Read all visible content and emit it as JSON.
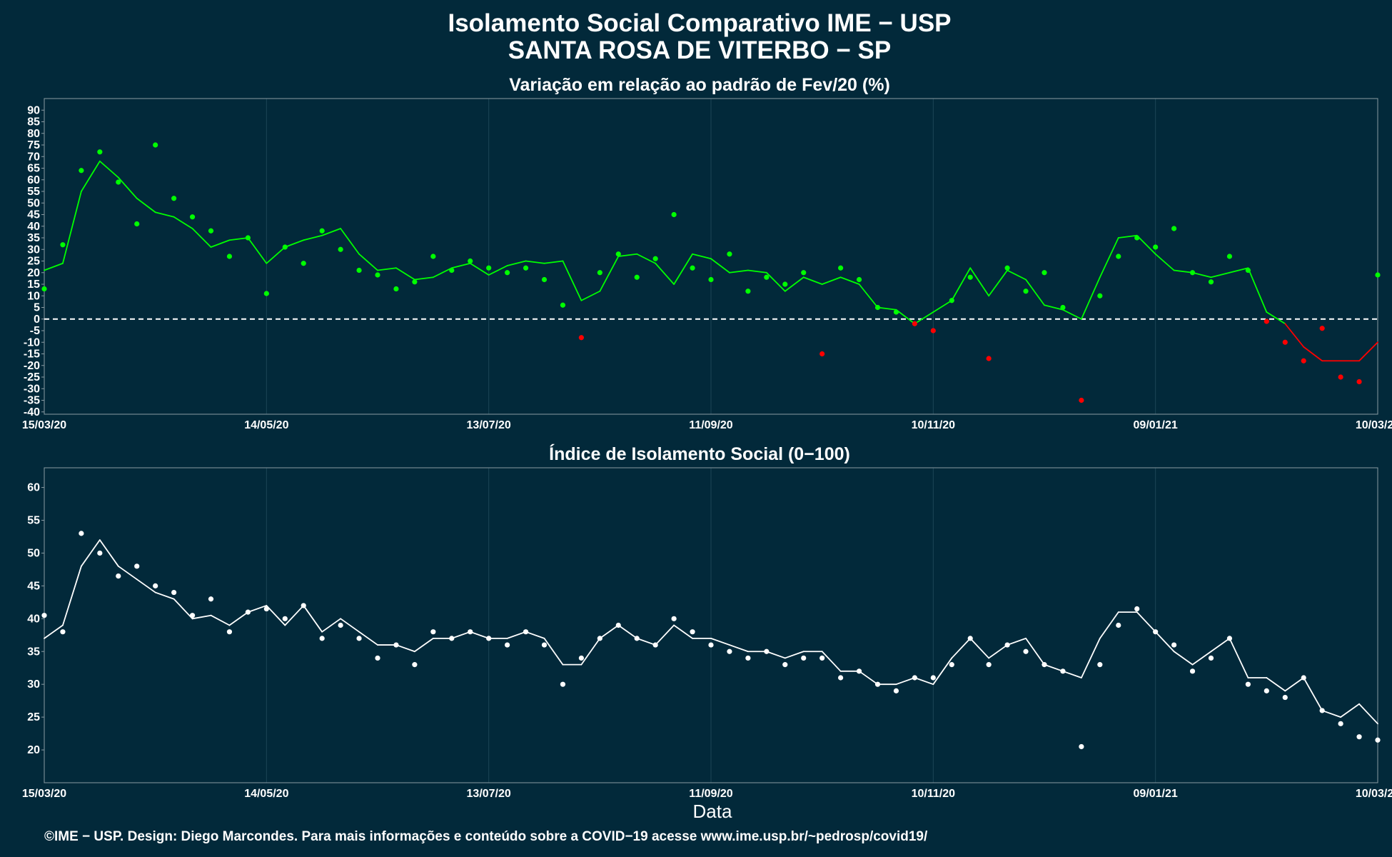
{
  "header": {
    "title_line1": "Isolamento Social Comparativo IME − USP",
    "title_line2": "SANTA ROSA DE VITERBO − SP"
  },
  "footer": {
    "credit": "©IME − USP. Design: Diego Marcondes. Para mais informações e conteúdo sobre a COVID−19 acesse www.ime.usp.br/~pedrosp/covid19/"
  },
  "colors": {
    "background": "#02293a",
    "positive": "#00ff00",
    "negative": "#ff0000",
    "index_series": "#ffffff",
    "axis_frame": "#8a9ba3",
    "grid": "#1c4556"
  },
  "chart_data": [
    {
      "type": "scatter",
      "title": "Variação em relação ao padrão de Fev/20 (%)",
      "xlabel": "",
      "ylabel": "",
      "x_axis": "date",
      "xlim": [
        "2020-03-15",
        "2021-03-10"
      ],
      "ylim": [
        -41,
        95
      ],
      "x_ticks": [
        "15/03/20",
        "14/05/20",
        "13/07/20",
        "11/09/20",
        "10/11/20",
        "09/01/21",
        "10/03/21"
      ],
      "y_ticks": [
        90,
        85,
        80,
        75,
        70,
        65,
        60,
        55,
        50,
        45,
        40,
        35,
        30,
        25,
        20,
        15,
        10,
        5,
        0,
        -5,
        -10,
        -15,
        -20,
        -25,
        -30,
        -35,
        -40
      ],
      "reference_line": 0,
      "point_color_rule": "green when ≥ 0, red when < 0",
      "series": [
        {
          "name": "daily",
          "style": "points",
          "x": [
            "2020-03-15",
            "2020-03-20",
            "2020-03-25",
            "2020-03-30",
            "2020-04-04",
            "2020-04-09",
            "2020-04-14",
            "2020-04-19",
            "2020-04-24",
            "2020-04-29",
            "2020-05-04",
            "2020-05-09",
            "2020-05-14",
            "2020-05-19",
            "2020-05-24",
            "2020-05-29",
            "2020-06-03",
            "2020-06-08",
            "2020-06-13",
            "2020-06-18",
            "2020-06-23",
            "2020-06-28",
            "2020-07-03",
            "2020-07-08",
            "2020-07-13",
            "2020-07-18",
            "2020-07-23",
            "2020-07-28",
            "2020-08-02",
            "2020-08-07",
            "2020-08-12",
            "2020-08-17",
            "2020-08-22",
            "2020-08-27",
            "2020-09-01",
            "2020-09-06",
            "2020-09-11",
            "2020-09-16",
            "2020-09-21",
            "2020-09-26",
            "2020-10-01",
            "2020-10-06",
            "2020-10-11",
            "2020-10-16",
            "2020-10-21",
            "2020-10-26",
            "2020-10-31",
            "2020-11-05",
            "2020-11-10",
            "2020-11-15",
            "2020-11-20",
            "2020-11-25",
            "2020-11-30",
            "2020-12-05",
            "2020-12-10",
            "2020-12-15",
            "2020-12-20",
            "2020-12-25",
            "2020-12-30",
            "2021-01-04",
            "2021-01-09",
            "2021-01-14",
            "2021-01-19",
            "2021-01-24",
            "2021-01-29",
            "2021-02-03",
            "2021-02-08",
            "2021-02-13",
            "2021-02-18",
            "2021-02-23",
            "2021-02-28",
            "2021-03-05",
            "2021-03-10"
          ],
          "y": [
            13,
            32,
            64,
            72,
            59,
            41,
            75,
            52,
            44,
            38,
            27,
            35,
            11,
            31,
            24,
            38,
            30,
            21,
            19,
            13,
            16,
            27,
            21,
            25,
            22,
            20,
            22,
            17,
            6,
            -8,
            20,
            28,
            18,
            26,
            45,
            22,
            17,
            28,
            12,
            18,
            15,
            20,
            -15,
            22,
            17,
            5,
            3,
            -2,
            -5,
            8,
            18,
            -17,
            22,
            12,
            20,
            5,
            -35,
            10,
            27,
            35,
            31,
            39,
            20,
            16,
            27,
            21,
            -1,
            -10,
            -18,
            -4,
            -25,
            -27,
            19
          ]
        },
        {
          "name": "7-day moving average",
          "style": "line",
          "x": [
            "2020-03-15",
            "2020-03-20",
            "2020-03-25",
            "2020-03-30",
            "2020-04-04",
            "2020-04-09",
            "2020-04-14",
            "2020-04-19",
            "2020-04-24",
            "2020-04-29",
            "2020-05-04",
            "2020-05-09",
            "2020-05-14",
            "2020-05-19",
            "2020-05-24",
            "2020-05-29",
            "2020-06-03",
            "2020-06-08",
            "2020-06-13",
            "2020-06-18",
            "2020-06-23",
            "2020-06-28",
            "2020-07-03",
            "2020-07-08",
            "2020-07-13",
            "2020-07-18",
            "2020-07-23",
            "2020-07-28",
            "2020-08-02",
            "2020-08-07",
            "2020-08-12",
            "2020-08-17",
            "2020-08-22",
            "2020-08-27",
            "2020-09-01",
            "2020-09-06",
            "2020-09-11",
            "2020-09-16",
            "2020-09-21",
            "2020-09-26",
            "2020-10-01",
            "2020-10-06",
            "2020-10-11",
            "2020-10-16",
            "2020-10-21",
            "2020-10-26",
            "2020-10-31",
            "2020-11-05",
            "2020-11-10",
            "2020-11-15",
            "2020-11-20",
            "2020-11-25",
            "2020-11-30",
            "2020-12-05",
            "2020-12-10",
            "2020-12-15",
            "2020-12-20",
            "2020-12-25",
            "2020-12-30",
            "2021-01-04",
            "2021-01-09",
            "2021-01-14",
            "2021-01-19",
            "2021-01-24",
            "2021-01-29",
            "2021-02-03",
            "2021-02-08",
            "2021-02-13",
            "2021-02-18",
            "2021-02-23",
            "2021-02-28",
            "2021-03-05",
            "2021-03-10"
          ],
          "y": [
            21,
            24,
            55,
            68,
            61,
            52,
            46,
            44,
            39,
            31,
            34,
            35,
            24,
            31,
            34,
            36,
            39,
            28,
            21,
            22,
            17,
            18,
            22,
            24,
            19,
            23,
            25,
            24,
            25,
            8,
            12,
            27,
            28,
            24,
            15,
            28,
            26,
            20,
            21,
            20,
            12,
            18,
            15,
            18,
            15,
            5,
            4,
            -2,
            3,
            8,
            22,
            10,
            21,
            17,
            6,
            4,
            0,
            18,
            35,
            36,
            28,
            21,
            20,
            18,
            20,
            22,
            3,
            -2,
            -12,
            -18,
            -18,
            -18,
            -10
          ]
        }
      ]
    },
    {
      "type": "scatter",
      "title": "Índice de Isolamento Social (0−100)",
      "xlabel": "Data",
      "ylabel": "",
      "x_axis": "date",
      "xlim": [
        "2020-03-15",
        "2021-03-10"
      ],
      "ylim": [
        15,
        63
      ],
      "x_ticks": [
        "15/03/20",
        "14/05/20",
        "13/07/20",
        "11/09/20",
        "10/11/20",
        "09/01/21",
        "10/03/21"
      ],
      "y_ticks": [
        60,
        55,
        50,
        45,
        40,
        35,
        30,
        25,
        20
      ],
      "series": [
        {
          "name": "daily",
          "style": "points",
          "x": [
            "2020-03-15",
            "2020-03-20",
            "2020-03-25",
            "2020-03-30",
            "2020-04-04",
            "2020-04-09",
            "2020-04-14",
            "2020-04-19",
            "2020-04-24",
            "2020-04-29",
            "2020-05-04",
            "2020-05-09",
            "2020-05-14",
            "2020-05-19",
            "2020-05-24",
            "2020-05-29",
            "2020-06-03",
            "2020-06-08",
            "2020-06-13",
            "2020-06-18",
            "2020-06-23",
            "2020-06-28",
            "2020-07-03",
            "2020-07-08",
            "2020-07-13",
            "2020-07-18",
            "2020-07-23",
            "2020-07-28",
            "2020-08-02",
            "2020-08-07",
            "2020-08-12",
            "2020-08-17",
            "2020-08-22",
            "2020-08-27",
            "2020-09-01",
            "2020-09-06",
            "2020-09-11",
            "2020-09-16",
            "2020-09-21",
            "2020-09-26",
            "2020-10-01",
            "2020-10-06",
            "2020-10-11",
            "2020-10-16",
            "2020-10-21",
            "2020-10-26",
            "2020-10-31",
            "2020-11-05",
            "2020-11-10",
            "2020-11-15",
            "2020-11-20",
            "2020-11-25",
            "2020-11-30",
            "2020-12-05",
            "2020-12-10",
            "2020-12-15",
            "2020-12-20",
            "2020-12-25",
            "2020-12-30",
            "2021-01-04",
            "2021-01-09",
            "2021-01-14",
            "2021-01-19",
            "2021-01-24",
            "2021-01-29",
            "2021-02-03",
            "2021-02-08",
            "2021-02-13",
            "2021-02-18",
            "2021-02-23",
            "2021-02-28",
            "2021-03-05",
            "2021-03-10"
          ],
          "y": [
            40.5,
            38,
            53,
            50,
            46.5,
            48,
            45,
            44,
            40.5,
            43,
            38,
            41,
            41.5,
            40,
            42,
            37,
            39,
            37,
            34,
            36,
            33,
            38,
            37,
            38,
            37,
            36,
            38,
            36,
            30,
            34,
            37,
            39,
            37,
            36,
            40,
            38,
            36,
            35,
            34,
            35,
            33,
            34,
            34,
            31,
            32,
            30,
            29,
            31,
            31,
            33,
            37,
            33,
            36,
            35,
            33,
            32,
            20.5,
            33,
            39,
            41.5,
            38,
            36,
            32,
            34,
            37,
            30,
            29,
            28,
            31,
            26,
            24,
            22,
            21.5
          ]
        },
        {
          "name": "7-day moving average",
          "style": "line",
          "x": [
            "2020-03-15",
            "2020-03-20",
            "2020-03-25",
            "2020-03-30",
            "2020-04-04",
            "2020-04-09",
            "2020-04-14",
            "2020-04-19",
            "2020-04-24",
            "2020-04-29",
            "2020-05-04",
            "2020-05-09",
            "2020-05-14",
            "2020-05-19",
            "2020-05-24",
            "2020-05-29",
            "2020-06-03",
            "2020-06-08",
            "2020-06-13",
            "2020-06-18",
            "2020-06-23",
            "2020-06-28",
            "2020-07-03",
            "2020-07-08",
            "2020-07-13",
            "2020-07-18",
            "2020-07-23",
            "2020-07-28",
            "2020-08-02",
            "2020-08-07",
            "2020-08-12",
            "2020-08-17",
            "2020-08-22",
            "2020-08-27",
            "2020-09-01",
            "2020-09-06",
            "2020-09-11",
            "2020-09-16",
            "2020-09-21",
            "2020-09-26",
            "2020-10-01",
            "2020-10-06",
            "2020-10-11",
            "2020-10-16",
            "2020-10-21",
            "2020-10-26",
            "2020-10-31",
            "2020-11-05",
            "2020-11-10",
            "2020-11-15",
            "2020-11-20",
            "2020-11-25",
            "2020-11-30",
            "2020-12-05",
            "2020-12-10",
            "2020-12-15",
            "2020-12-20",
            "2020-12-25",
            "2020-12-30",
            "2021-01-04",
            "2021-01-09",
            "2021-01-14",
            "2021-01-19",
            "2021-01-24",
            "2021-01-29",
            "2021-02-03",
            "2021-02-08",
            "2021-02-13",
            "2021-02-18",
            "2021-02-23",
            "2021-02-28",
            "2021-03-05",
            "2021-03-10"
          ],
          "y": [
            37,
            39,
            48,
            52,
            48,
            46,
            44,
            43,
            40,
            40.5,
            39,
            41,
            42,
            39,
            42,
            38,
            40,
            38,
            36,
            36,
            35,
            37,
            37,
            38,
            37,
            37,
            38,
            37,
            33,
            33,
            37,
            39,
            37,
            36,
            39,
            37,
            37,
            36,
            35,
            35,
            34,
            35,
            35,
            32,
            32,
            30,
            30,
            31,
            30,
            34,
            37,
            34,
            36,
            37,
            33,
            32,
            31,
            37,
            41,
            41,
            38,
            35,
            33,
            35,
            37,
            31,
            31,
            29,
            31,
            26,
            25,
            27,
            24
          ]
        }
      ]
    }
  ]
}
